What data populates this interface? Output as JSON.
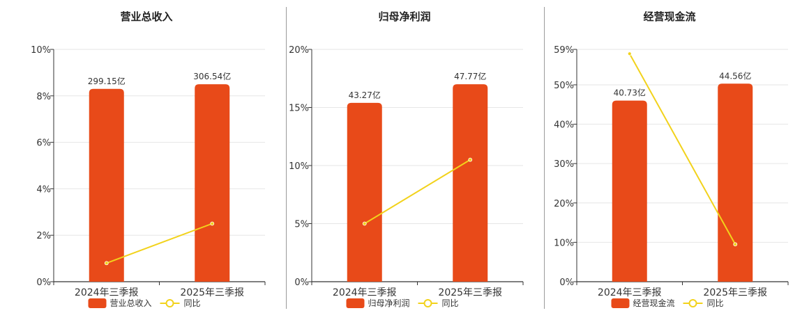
{
  "colors": {
    "bar": "#e84a19",
    "line": "#f2d21b",
    "axis": "#333333",
    "grid": "#e6e6e6",
    "text": "#333333"
  },
  "chart_data": [
    {
      "type": "bar",
      "title": "营业总收入",
      "categories": [
        "2024年三季报",
        "2025年三季报"
      ],
      "yticks": [
        "0%",
        "2%",
        "4%",
        "6%",
        "8%",
        "10%"
      ],
      "ylim": [
        0,
        10
      ],
      "series": [
        {
          "name": "营业总收入",
          "kind": "bar",
          "values": [
            8.3,
            8.5
          ],
          "labels": [
            "299.15亿",
            "306.54亿"
          ]
        },
        {
          "name": "同比",
          "kind": "line",
          "values": [
            0.8,
            2.5
          ]
        }
      ],
      "legend": "bottom",
      "grid": true
    },
    {
      "type": "bar",
      "title": "归母净利润",
      "categories": [
        "2024年三季报",
        "2025年三季报"
      ],
      "yticks": [
        "0%",
        "5%",
        "10%",
        "15%",
        "20%"
      ],
      "ylim": [
        0,
        20
      ],
      "series": [
        {
          "name": "归母净利润",
          "kind": "bar",
          "values": [
            15.4,
            17.0
          ],
          "labels": [
            "43.27亿",
            "47.77亿"
          ]
        },
        {
          "name": "同比",
          "kind": "line",
          "values": [
            5.0,
            10.5
          ]
        }
      ],
      "legend": "bottom",
      "grid": true
    },
    {
      "type": "bar",
      "title": "经营现金流",
      "categories": [
        "2024年三季报",
        "2025年三季报"
      ],
      "yticks": [
        "0%",
        "10%",
        "20%",
        "30%",
        "40%",
        "50%",
        "59%"
      ],
      "ytick_values": [
        0,
        10,
        20,
        30,
        40,
        50,
        59
      ],
      "ylim": [
        0,
        59
      ],
      "series": [
        {
          "name": "经营现金流",
          "kind": "bar",
          "values": [
            46.0,
            50.3
          ],
          "labels": [
            "40.73亿",
            "44.56亿"
          ]
        },
        {
          "name": "同比",
          "kind": "line",
          "values": [
            57.9,
            9.5
          ]
        }
      ],
      "legend": "bottom",
      "grid": true
    }
  ]
}
